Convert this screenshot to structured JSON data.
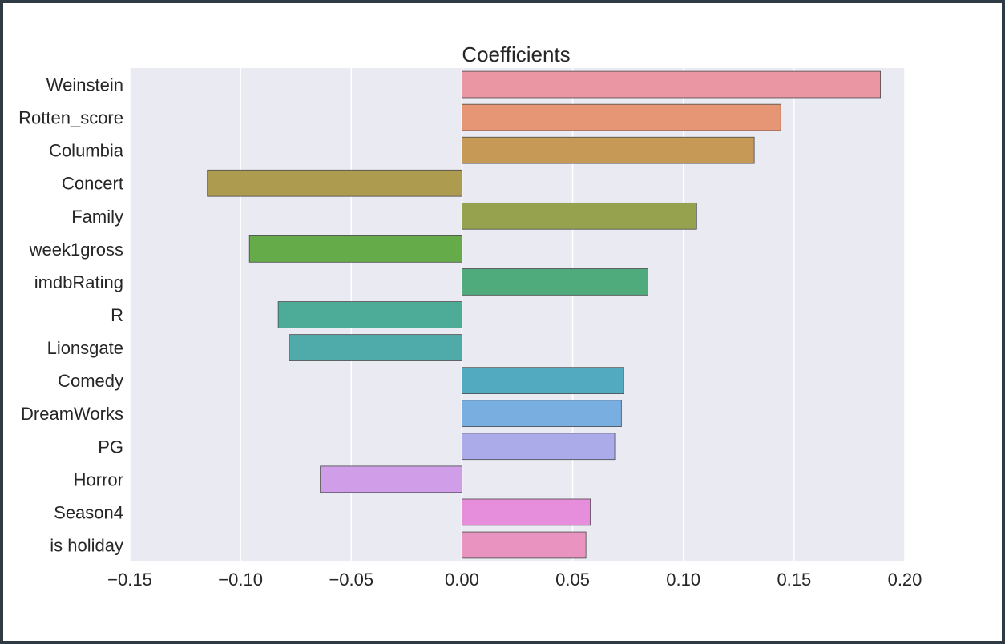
{
  "chart_data": {
    "type": "bar",
    "orientation": "horizontal",
    "title": "Coefficients",
    "xlabel": "",
    "ylabel": "",
    "xlim": [
      -0.15,
      0.2
    ],
    "x_ticks": [
      -0.15,
      -0.1,
      -0.05,
      0.0,
      0.05,
      0.1,
      0.15,
      0.2
    ],
    "x_tick_labels": [
      "−0.15",
      "−0.10",
      "−0.05",
      "0.00",
      "0.05",
      "0.10",
      "0.15",
      "0.20"
    ],
    "grid": "vertical",
    "categories": [
      "Weinstein",
      "Rotten_score",
      "Columbia",
      "Concert",
      "Family",
      "week1gross",
      "imdbRating",
      "R",
      "Lionsgate",
      "Comedy",
      "DreamWorks",
      "PG",
      "Horror",
      "Season4",
      "is holiday"
    ],
    "values": [
      0.189,
      0.144,
      0.132,
      -0.115,
      0.106,
      -0.096,
      0.084,
      -0.083,
      -0.078,
      0.073,
      0.072,
      0.069,
      -0.064,
      0.058,
      0.056
    ],
    "colors": [
      "#ea96a3",
      "#e69575",
      "#c69a56",
      "#ad9c4f",
      "#96a24e",
      "#66ab4a",
      "#4fab7c",
      "#4dac98",
      "#4faaaa",
      "#52aac0",
      "#78aee0",
      "#ababe9",
      "#d09ee8",
      "#e68edc",
      "#e893c0"
    ]
  }
}
